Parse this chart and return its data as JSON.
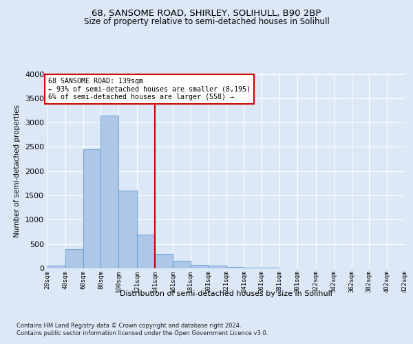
{
  "title1": "68, SANSOME ROAD, SHIRLEY, SOLIHULL, B90 2BP",
  "title2": "Size of property relative to semi-detached houses in Solihull",
  "xlabel": "Distribution of semi-detached houses by size in Solihull",
  "ylabel": "Number of semi-detached properties",
  "footnote1": "Contains HM Land Registry data © Crown copyright and database right 2024.",
  "footnote2": "Contains public sector information licensed under the Open Government Licence v3.0.",
  "annotation_title": "68 SANSOME ROAD: 139sqm",
  "annotation_line2": "← 93% of semi-detached houses are smaller (8,195)",
  "annotation_line3": "6% of semi-detached houses are larger (558) →",
  "bar_edges": [
    20,
    40,
    60,
    80,
    100,
    121,
    141,
    161,
    181,
    201,
    221,
    241,
    261,
    281,
    301,
    322,
    342,
    362,
    382,
    402,
    422
  ],
  "bar_heights": [
    50,
    400,
    2450,
    3150,
    1600,
    700,
    300,
    150,
    75,
    60,
    30,
    15,
    8,
    5,
    3,
    2,
    2,
    1,
    1,
    1
  ],
  "bar_color": "#aec6e8",
  "bar_edge_color": "#5b9bd5",
  "vline_color": "#cc0000",
  "vline_x": 141,
  "ylim": [
    0,
    4000
  ],
  "background_color": "#dce8f5",
  "plot_bg_color": "#dce8f5",
  "grid_color": "#ffffff",
  "annotation_box_color": "#ffffff",
  "annotation_box_edge": "#cc0000"
}
